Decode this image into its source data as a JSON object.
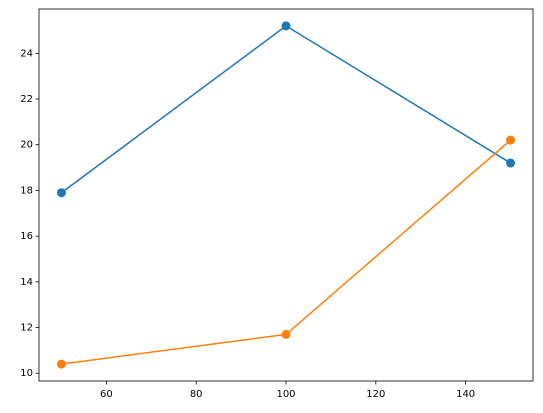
{
  "chart_data": {
    "type": "line",
    "x": [
      50,
      100,
      150
    ],
    "series": [
      {
        "color": "#1f77b4",
        "values": [
          17.9,
          25.2,
          19.2
        ]
      },
      {
        "color": "#ff7f0e",
        "values": [
          10.4,
          11.7,
          20.2
        ]
      }
    ],
    "xlim": [
      45,
      155
    ],
    "xticks": [
      60,
      80,
      100,
      120,
      140
    ],
    "ylim": [
      9.66,
      25.94
    ],
    "yticks": [
      10,
      12,
      14,
      16,
      18,
      20,
      22,
      24
    ],
    "grid": false,
    "markers": true
  }
}
